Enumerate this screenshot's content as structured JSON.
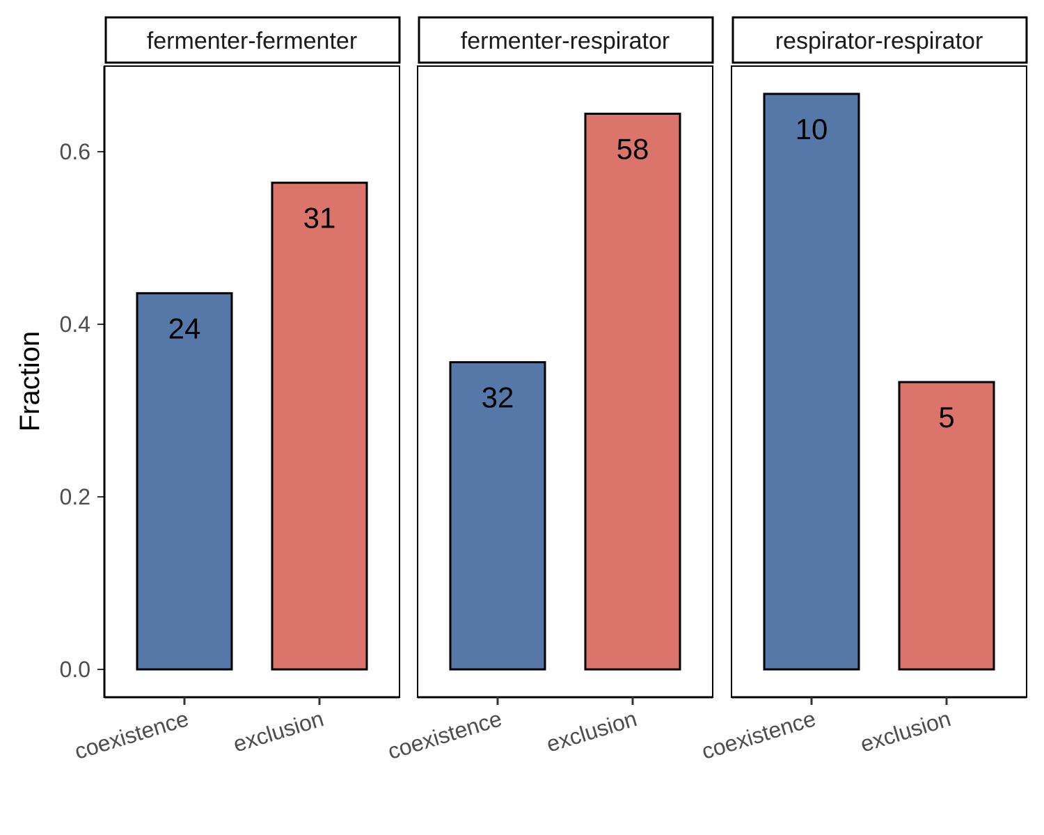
{
  "chart_data": {
    "type": "bar",
    "ylabel": "Fraction",
    "xlabel": "",
    "ylim": [
      0,
      0.7
    ],
    "yticks": [
      0.0,
      0.2,
      0.4,
      0.6
    ],
    "ytick_labels": [
      "0.0",
      "0.2",
      "0.4",
      "0.6"
    ],
    "categories": [
      "coexistence",
      "exclusion"
    ],
    "colors": {
      "coexistence": "#5578a8",
      "exclusion": "#db756b"
    },
    "panels": [
      {
        "title": "fermenter-fermenter",
        "values": [
          0.436,
          0.564
        ],
        "labels": [
          "24",
          "31"
        ]
      },
      {
        "title": "fermenter-respirator",
        "values": [
          0.356,
          0.644
        ],
        "labels": [
          "32",
          "58"
        ]
      },
      {
        "title": "respirator-respirator",
        "values": [
          0.667,
          0.333
        ],
        "labels": [
          "10",
          "5"
        ]
      }
    ],
    "grid": false,
    "legend": "none"
  }
}
